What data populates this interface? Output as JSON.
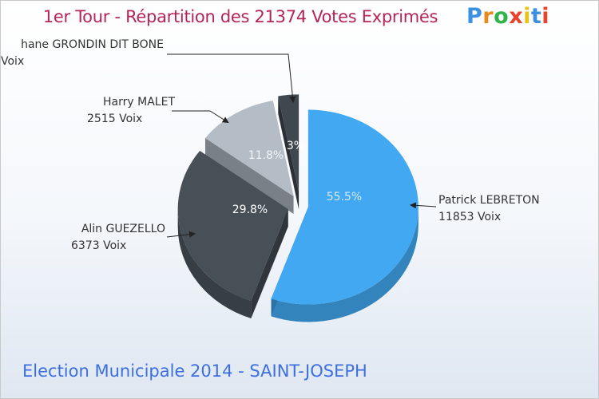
{
  "title": "1er Tour - Répartition des 21374 Votes Exprimés",
  "logo": {
    "text": "Proxiti",
    "colors": [
      "#3d8fe0",
      "#e88a1a",
      "#2fb44a",
      "#e8432c",
      "#e8c21a",
      "#3d8fe0",
      "#e8432c"
    ]
  },
  "footer": "Election Municipale 2014 - SAINT-JOSEPH",
  "chart_data": {
    "type": "pie",
    "total": 21374,
    "slices": [
      {
        "name": "Patrick LEBRETON",
        "votes": 11853,
        "votes_label": "11853 Voix",
        "percent": 55.5,
        "percent_label": "55.5%",
        "color": "#41a8f1"
      },
      {
        "name": "Alin GUEZELLO",
        "votes": 6373,
        "votes_label": "6373 Voix",
        "percent": 29.8,
        "percent_label": "29.8%",
        "color": "#474f57"
      },
      {
        "name": "Harry MALET",
        "votes": 2515,
        "votes_label": "2515 Voix",
        "percent": 11.8,
        "percent_label": "11.8%",
        "color": "#b4bcc6"
      },
      {
        "name": "Stéphane GRONDIN DIT BONE",
        "display_name": "hane GRONDIN DIT BONE",
        "votes_label": "Voix",
        "percent": 3,
        "percent_label": "3%",
        "color": "#3f474f"
      }
    ]
  }
}
